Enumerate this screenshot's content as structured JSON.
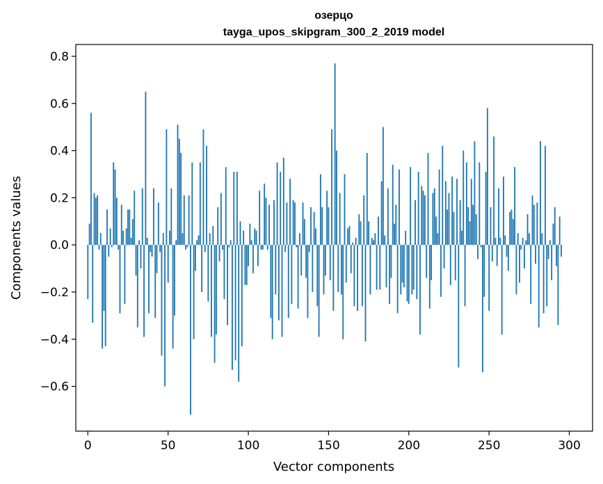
{
  "chart_data": {
    "type": "bar",
    "title": "озерцо",
    "subtitle": "tayga_upos_skipgram_300_2_2019 model",
    "xlabel": "Vector components",
    "ylabel": "Components values",
    "xlim": [
      -7.5,
      314.5
    ],
    "ylim": [
      -0.79,
      0.85
    ],
    "xticks": [
      0,
      50,
      100,
      150,
      200,
      250,
      300
    ],
    "yticks": [
      -0.6,
      -0.4,
      -0.2,
      0.0,
      0.2,
      0.4,
      0.6,
      0.8
    ],
    "xtick_labels": [
      "0",
      "50",
      "100",
      "150",
      "200",
      "250",
      "300"
    ],
    "ytick_labels": [
      "−0.6",
      "−0.4",
      "−0.2",
      "0.0",
      "0.2",
      "0.4",
      "0.6",
      "0.8"
    ],
    "grid": false,
    "legend": "none",
    "bar_color": "#1f77b4",
    "values": [
      -0.23,
      0.09,
      0.56,
      -0.33,
      0.22,
      0.2,
      0.21,
      -0.02,
      0.05,
      -0.44,
      -0.28,
      -0.43,
      0.15,
      -0.05,
      0.07,
      -0.01,
      0.35,
      0.32,
      0.2,
      -0.02,
      -0.29,
      0.17,
      0.06,
      -0.25,
      0.07,
      0.15,
      0.15,
      0.03,
      0.11,
      0.23,
      -0.13,
      -0.35,
      0.02,
      -0.1,
      0.24,
      -0.39,
      0.65,
      0.03,
      -0.29,
      -0.03,
      -0.05,
      0.24,
      -0.31,
      -0.12,
      0.18,
      -0.03,
      -0.47,
      0.05,
      -0.6,
      0.49,
      -0.16,
      0.06,
      0.24,
      -0.44,
      -0.3,
      0.02,
      0.51,
      0.45,
      0.39,
      0.05,
      0.21,
      -0.02,
      -0.01,
      0.21,
      -0.72,
      0.35,
      -0.4,
      -0.11,
      0.02,
      0.04,
      0.35,
      -0.2,
      0.49,
      -0.03,
      0.42,
      -0.24,
      0.05,
      -0.39,
      0.08,
      -0.5,
      -0.38,
      0.16,
      -0.07,
      0.22,
      -0.02,
      -0.23,
      0.33,
      -0.34,
      -0.01,
      0.02,
      -0.53,
      0.31,
      -0.49,
      0.31,
      -0.58,
      0.1,
      -0.43,
      0.06,
      -0.17,
      -0.17,
      -0.09,
      0.09,
      0.02,
      -0.12,
      0.07,
      0.06,
      -0.09,
      0.23,
      -0.02,
      -0.02,
      0.26,
      0.2,
      -0.02,
      0.17,
      -0.31,
      -0.4,
      0.19,
      -0.21,
      0.35,
      -0.32,
      0.31,
      -0.39,
      0.37,
      -0.03,
      0.18,
      -0.31,
      0.28,
      -0.25,
      0.19,
      0.18,
      -0.01,
      -0.27,
      0.05,
      -0.13,
      0.18,
      0.11,
      -0.14,
      -0.31,
      -0.03,
      0.16,
      -0.2,
      0.14,
      0.07,
      -0.26,
      -0.39,
      0.3,
      0.16,
      -0.21,
      -0.13,
      0.23,
      0.16,
      -0.15,
      0.49,
      -0.28,
      0.77,
      0.4,
      -0.2,
      0.22,
      -0.21,
      -0.4,
      0.3,
      -0.16,
      0.07,
      0.08,
      -0.12,
      0.01,
      -0.26,
      0.03,
      -0.28,
      0.13,
      0.1,
      -0.26,
      0.21,
      -0.41,
      0.39,
      0.1,
      -0.21,
      0.03,
      0.02,
      0.05,
      -0.19,
      0.12,
      -0.19,
      0.27,
      0.5,
      0.04,
      -0.18,
      0.24,
      -0.25,
      -0.14,
      0.34,
      0.09,
      0.17,
      -0.29,
      0.32,
      -0.21,
      -0.16,
      -0.18,
      0.06,
      -0.24,
      -0.25,
      0.33,
      -0.21,
      -0.19,
      0.19,
      -0.23,
      0.31,
      -0.38,
      0.25,
      0.23,
      0.21,
      -0.14,
      0.39,
      -0.27,
      -0.15,
      0.22,
      0.24,
      0.12,
      0.05,
      0.32,
      -0.22,
      0.42,
      -0.1,
      0.27,
      0.15,
      0.22,
      -0.17,
      0.29,
      0.14,
      -0.15,
      0.28,
      -0.52,
      0.19,
      0.06,
      0.4,
      -0.26,
      0.35,
      0.16,
      0.1,
      0.28,
      0.17,
      0.44,
      0.13,
      -0.06,
      0.35,
      -0.01,
      -0.54,
      -0.22,
      0.31,
      0.58,
      -0.28,
      0.16,
      -0.07,
      0.46,
      0.03,
      -0.09,
      0.24,
      0.03,
      -0.38,
      0.29,
      0.04,
      -0.05,
      -0.11,
      0.14,
      0.15,
      0.11,
      0.33,
      -0.21,
      0.05,
      -0.16,
      -0.02,
      0.03,
      -0.1,
      0.02,
      0.13,
      0.05,
      -0.25,
      0.21,
      0.17,
      -0.08,
      0.18,
      -0.35,
      0.44,
      0.05,
      -0.29,
      0.42,
      -0.26,
      -0.06,
      0.02,
      -0.15,
      0.09,
      0.16,
      -0.09,
      -0.34,
      0.12,
      -0.05
    ]
  }
}
